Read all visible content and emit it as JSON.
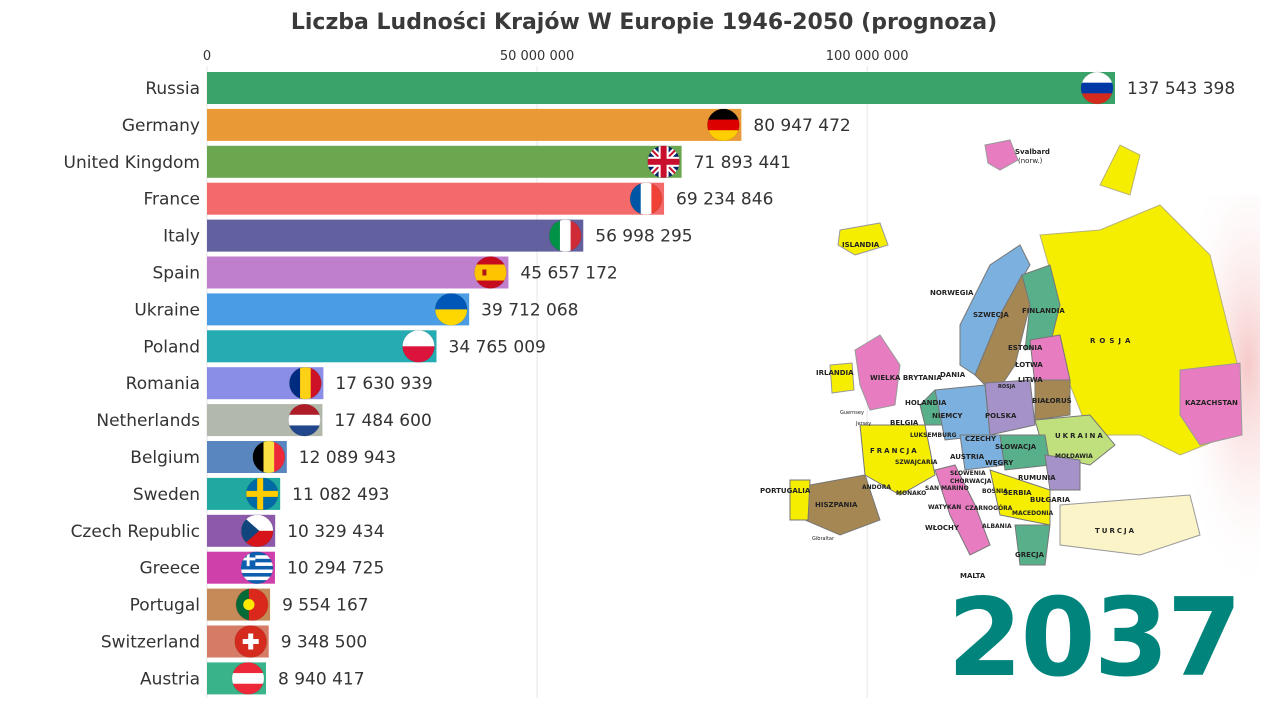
{
  "title": "Liczba Ludności Krajów W Europie 1946-2050 (prognoza)",
  "year": "2037",
  "chart_data": {
    "type": "bar",
    "orientation": "horizontal",
    "title": "Liczba Ludności Krajów W Europie 1946-2050 (prognoza)",
    "xlim": [
      0,
      137543398
    ],
    "x_ticks": [
      0,
      50000000,
      100000000
    ],
    "x_tick_labels": [
      "0",
      "50 000 000",
      "100 000 000"
    ],
    "grid": true,
    "categories": [
      "Russia",
      "Germany",
      "United Kingdom",
      "France",
      "Italy",
      "Spain",
      "Ukraine",
      "Poland",
      "Romania",
      "Netherlands",
      "Belgium",
      "Sweden",
      "Czech Republic",
      "Greece",
      "Portugal",
      "Switzerland",
      "Austria"
    ],
    "values": [
      137543398,
      80947472,
      71893441,
      69234846,
      56998295,
      45657172,
      39712068,
      34765009,
      17630939,
      17484600,
      12089943,
      11082493,
      10329434,
      10294725,
      9554167,
      9348500,
      8940417
    ],
    "value_labels": [
      "137 543 398",
      "80 947 472",
      "71 893 441",
      "69 234 846",
      "56 998 295",
      "45 657 172",
      "39 712 068",
      "34 765 009",
      "17 630 939",
      "17 484 600",
      "12 089 943",
      "11 082 493",
      "10 329 434",
      "10 294 725",
      "9 554 167",
      "9 348 500",
      "8 940 417"
    ],
    "colors": [
      "#3aa36a",
      "#e99a36",
      "#6aa74f",
      "#f46a6a",
      "#63609f",
      "#bf7fcc",
      "#4a9de4",
      "#25abb2",
      "#8a8ee6",
      "#b3b8ac",
      "#5a86c0",
      "#20a9a0",
      "#8c5aa8",
      "#d040aa",
      "#c58a57",
      "#d57b66",
      "#38b38a"
    ],
    "flags": [
      "russia-flag",
      "germany-flag",
      "uk-flag",
      "france-flag",
      "italy-flag",
      "spain-flag",
      "ukraine-flag",
      "poland-flag",
      "romania-flag",
      "netherlands-flag",
      "belgium-flag",
      "sweden-flag",
      "czech-flag",
      "greece-flag",
      "portugal-flag",
      "switzerland-flag",
      "austria-flag"
    ]
  },
  "map": {
    "labels": [
      "ISLANDIA",
      "Svalbard",
      "(norw.)",
      "NORWEGIA",
      "SZWECJA",
      "FINLANDIA",
      "ROSJA",
      "ESTONIA",
      "ŁOTWA",
      "LITWA",
      "ROSJA",
      "BIAŁORUŚ",
      "IRLANDIA",
      "WIELKA BRYTANIA",
      "DANIA",
      "HOLANDIA",
      "BELGIA",
      "NIEMCY",
      "POLSKA",
      "UKRAINA",
      "KAZACHSTAN",
      "FRANCJA",
      "LUKSEMBURG",
      "CZECHY",
      "SŁOWACJA",
      "AUSTRIA",
      "WĘGRY",
      "MOŁDAWIA",
      "SZWAJCARIA",
      "RUMUNIA",
      "SŁOWENIA",
      "CHORWACJA",
      "BOŚNIA",
      "SERBIA",
      "BUŁGARIA",
      "PORTUGALIA",
      "HISZPANIA",
      "ANDORA",
      "MONAKO",
      "SAN MARINO",
      "WATYKAN",
      "CZARNOGÓRA",
      "MACEDONIA",
      "WŁOCHY",
      "ALBANIA",
      "TURCJA",
      "GRECJA",
      "MALTA",
      "Gibraltar",
      "Guernsey",
      "Jersey"
    ]
  }
}
